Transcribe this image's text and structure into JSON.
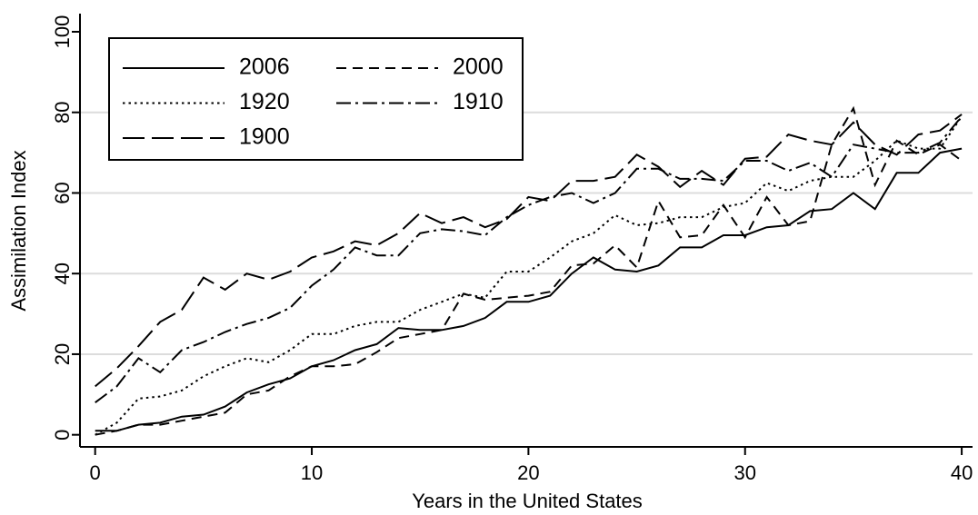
{
  "chart_data": {
    "type": "line",
    "xlabel": "Years in the United States",
    "ylabel": "Assimilation Index",
    "x": [
      0,
      1,
      2,
      3,
      4,
      5,
      6,
      7,
      8,
      9,
      10,
      11,
      12,
      13,
      14,
      15,
      16,
      17,
      18,
      19,
      20,
      21,
      22,
      23,
      24,
      25,
      26,
      27,
      28,
      29,
      30,
      31,
      32,
      33,
      34,
      35,
      36,
      37,
      38,
      39,
      40
    ],
    "series": [
      {
        "name": "2006",
        "color": "#000000",
        "dash": "solid",
        "values": [
          1,
          1,
          2.5,
          3,
          4.5,
          5,
          7,
          10.5,
          12.5,
          14,
          17,
          18.5,
          21,
          22.5,
          26.5,
          26,
          26,
          27,
          29,
          33,
          33,
          34.5,
          40,
          44,
          41,
          40.5,
          42,
          46.5,
          46.5,
          49.5,
          49.5,
          51.5,
          52,
          55.5,
          56,
          60,
          56,
          65,
          65,
          70,
          71
        ]
      },
      {
        "name": "2000",
        "color": "#000000",
        "dash": "dashed",
        "values": [
          0,
          1,
          2.5,
          2.5,
          3.5,
          4.5,
          5.5,
          10,
          11,
          14.5,
          17,
          17,
          17.5,
          20.5,
          24,
          25,
          26,
          35,
          33.5,
          34,
          34.5,
          35.5,
          42,
          42.5,
          47,
          41.5,
          58,
          49,
          49.5,
          57,
          49,
          59,
          52,
          53,
          72,
          81,
          62,
          73,
          69.5,
          72,
          68
        ]
      },
      {
        "name": "1920",
        "color": "#000000",
        "dash": "dotted",
        "values": [
          0,
          3,
          9,
          9.5,
          11,
          14.5,
          17,
          19,
          18,
          21,
          25,
          25,
          27,
          28,
          28,
          31,
          33,
          35,
          34,
          40.5,
          40.5,
          44,
          48,
          50,
          54.5,
          52,
          52.5,
          54,
          54,
          56.5,
          57.5,
          62.5,
          60.5,
          63,
          64,
          64,
          68,
          73,
          71,
          71,
          79
        ]
      },
      {
        "name": "1910",
        "color": "#000000",
        "dash": "dashdot",
        "values": [
          8,
          12,
          19,
          15.5,
          21,
          23,
          25.5,
          27.5,
          29,
          31.5,
          37,
          41,
          46.5,
          44.5,
          44.5,
          50,
          51,
          50.5,
          49.5,
          54,
          57,
          59,
          60,
          57.5,
          60,
          66,
          66,
          63.5,
          63.5,
          63,
          68,
          68,
          65.5,
          67.5,
          64,
          72,
          71,
          70,
          70,
          72.5,
          79
        ]
      },
      {
        "name": "1900",
        "color": "#000000",
        "dash": "longdash",
        "values": [
          12,
          16.5,
          22,
          28,
          31,
          39,
          36,
          40,
          38.5,
          40.5,
          44,
          45.5,
          48,
          47,
          50,
          55,
          52.5,
          54,
          51.5,
          53.5,
          59,
          58,
          63,
          63,
          64,
          69.5,
          66.5,
          61.5,
          65.5,
          62,
          68.5,
          69,
          74.5,
          73,
          72,
          77.5,
          72,
          69.5,
          74.5,
          75.5,
          79.5
        ]
      }
    ],
    "xlim": [
      -0.7,
      40.5
    ],
    "xticks": [
      0,
      10,
      20,
      30,
      40
    ],
    "ylim": [
      -3,
      104.5
    ],
    "yticks": [
      0,
      20,
      40,
      60,
      80,
      100
    ],
    "grid": true,
    "legend": "top-left"
  }
}
